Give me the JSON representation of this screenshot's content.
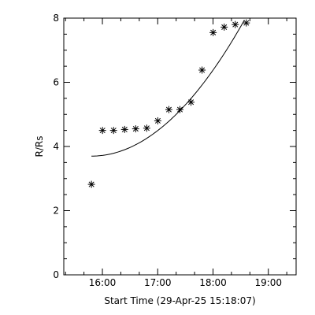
{
  "chart_data": {
    "type": "scatter",
    "title": "",
    "xlabel": "Start Time (29-Apr-25 15:18:07)",
    "ylabel": "R/Rs",
    "x_unit": "hours since 15:18:07",
    "xlim": [
      0.0,
      4.2
    ],
    "ylim": [
      0,
      8
    ],
    "x_ticks": [
      {
        "value": 0.698,
        "label": "16:00"
      },
      {
        "value": 1.698,
        "label": "17:00"
      },
      {
        "value": 2.698,
        "label": "18:00"
      },
      {
        "value": 3.698,
        "label": "19:00"
      }
    ],
    "y_ticks": [
      {
        "value": 0,
        "label": "0"
      },
      {
        "value": 2,
        "label": "2"
      },
      {
        "value": 4,
        "label": "4"
      },
      {
        "value": 6,
        "label": "6"
      },
      {
        "value": 8,
        "label": "8"
      }
    ],
    "series": [
      {
        "type": "scatter",
        "marker": "asterisk",
        "points": [
          {
            "time": "15:48",
            "x": 0.5,
            "y": 2.82
          },
          {
            "time": "16:00",
            "x": 0.7,
            "y": 4.5
          },
          {
            "time": "16:12",
            "x": 0.9,
            "y": 4.5
          },
          {
            "time": "16:24",
            "x": 1.1,
            "y": 4.53
          },
          {
            "time": "16:36",
            "x": 1.3,
            "y": 4.55
          },
          {
            "time": "16:48",
            "x": 1.5,
            "y": 4.57
          },
          {
            "time": "17:00",
            "x": 1.7,
            "y": 4.8
          },
          {
            "time": "17:12",
            "x": 1.9,
            "y": 5.15
          },
          {
            "time": "17:24",
            "x": 2.1,
            "y": 5.15
          },
          {
            "time": "17:36",
            "x": 2.3,
            "y": 5.38
          },
          {
            "time": "17:48",
            "x": 2.5,
            "y": 6.38
          },
          {
            "time": "18:00",
            "x": 2.7,
            "y": 7.55
          },
          {
            "time": "18:12",
            "x": 2.9,
            "y": 7.72
          },
          {
            "time": "18:24",
            "x": 3.1,
            "y": 7.8
          },
          {
            "time": "18:36",
            "x": 3.3,
            "y": 7.85
          }
        ]
      },
      {
        "type": "line",
        "fit": "quadratic",
        "x_range": [
          0.5,
          3.3
        ],
        "coefficients": [
          3.7,
          0.0,
          0.5544
        ]
      }
    ],
    "grid": false,
    "legend": "none"
  }
}
